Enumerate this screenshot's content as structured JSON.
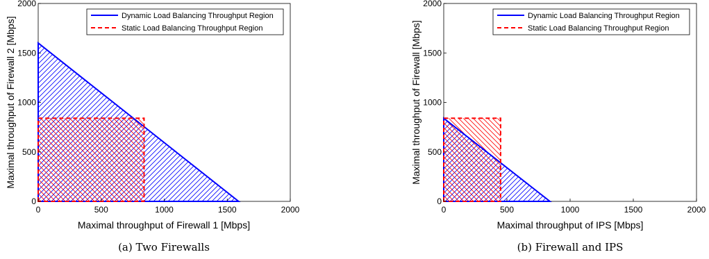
{
  "chart_data": [
    {
      "type": "area",
      "caption": "(a) Two Firewalls",
      "xlabel": "Maximal throughput of Firewall 1 [Mbps]",
      "ylabel": "Maximal throughput of Firewall 2 [Mbps]",
      "xlim": [
        0,
        2000
      ],
      "ylim": [
        0,
        2000
      ],
      "xticks": [
        0,
        500,
        1000,
        1500,
        2000
      ],
      "yticks": [
        0,
        500,
        1000,
        1500,
        2000
      ],
      "grid": false,
      "legend_position": "top-right",
      "series": [
        {
          "name": "Dynamic Load Balancing Throughput Region",
          "style": "solid",
          "color": "#0000ff",
          "x": [
            0,
            0,
            1590
          ],
          "y": [
            0,
            1600,
            0
          ]
        },
        {
          "name": "Static Load Balancing Throughput Region",
          "style": "dashed",
          "color": "#ff0000",
          "x": [
            0,
            0,
            840,
            840
          ],
          "y": [
            0,
            840,
            840,
            0
          ]
        }
      ]
    },
    {
      "type": "area",
      "caption": "(b) Firewall and IPS",
      "xlabel": "Maximal throughput of IPS [Mbps]",
      "ylabel": "Maximal throughput of Firewall [Mbps]",
      "xlim": [
        0,
        2000
      ],
      "ylim": [
        0,
        2000
      ],
      "xticks": [
        0,
        500,
        1000,
        1500,
        2000
      ],
      "yticks": [
        0,
        500,
        1000,
        1500,
        2000
      ],
      "grid": false,
      "legend_position": "top-right",
      "series": [
        {
          "name": "Dynamic Load Balancing Throughput Region",
          "style": "solid",
          "color": "#0000ff",
          "x": [
            0,
            0,
            840
          ],
          "y": [
            0,
            840,
            0
          ]
        },
        {
          "name": "Static Load Balancing Throughput Region",
          "style": "dashed",
          "color": "#ff0000",
          "x": [
            0,
            0,
            450,
            450
          ],
          "y": [
            0,
            840,
            840,
            0
          ]
        }
      ]
    }
  ]
}
